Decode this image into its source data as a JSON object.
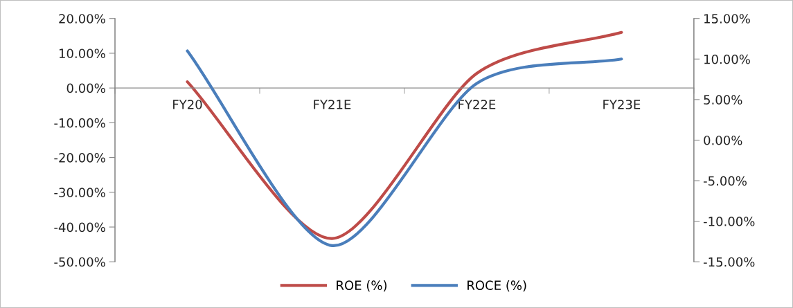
{
  "chart_data": {
    "type": "line",
    "categories": [
      "FY20",
      "FY21E",
      "FY22E",
      "FY23E"
    ],
    "series": [
      {
        "name": "ROE (%)",
        "color": "#be4b48",
        "values": [
          1.8,
          -43.3,
          4.2,
          16.0
        ]
      },
      {
        "name": "ROCE (%)",
        "color": "#4a7ebb",
        "axis": "y2",
        "values": [
          11.0,
          -13.0,
          7.0,
          10.0
        ]
      }
    ],
    "ylim": [
      -50,
      20
    ],
    "yticks": [
      {
        "value": -50,
        "label": "-50.00%"
      },
      {
        "value": -40,
        "label": "-40.00%"
      },
      {
        "value": -30,
        "label": "-30.00%"
      },
      {
        "value": -20,
        "label": "-20.00%"
      },
      {
        "value": -10,
        "label": "-10.00%"
      },
      {
        "value": 0,
        "label": "0.00%"
      },
      {
        "value": 10,
        "label": "10.00%"
      },
      {
        "value": 20,
        "label": "20.00%"
      }
    ],
    "y2lim": [
      -15,
      15
    ],
    "y2ticks": [
      {
        "value": -15,
        "label": "-15.00%"
      },
      {
        "value": -10,
        "label": "-10.00%"
      },
      {
        "value": -5,
        "label": "-5.00%"
      },
      {
        "value": 0,
        "label": "0.00%"
      },
      {
        "value": 5,
        "label": "5.00%"
      },
      {
        "value": 10,
        "label": "10.00%"
      },
      {
        "value": 15,
        "label": "15.00%"
      }
    ],
    "grid": false,
    "legend": "bottom",
    "marker": "none",
    "line_style": "solid"
  }
}
